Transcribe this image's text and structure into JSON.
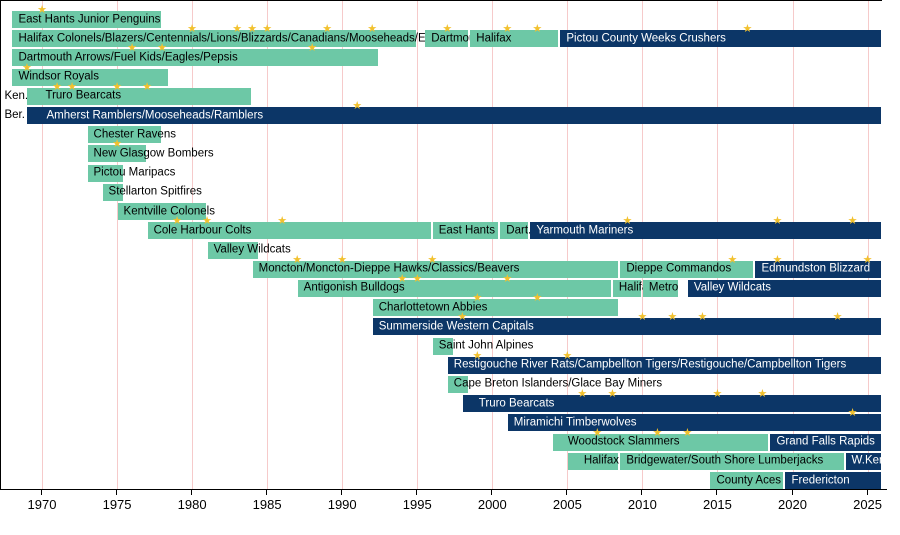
{
  "chart_data": {
    "type": "timeline",
    "title": "",
    "x_axis": {
      "unit": "year",
      "range": [
        1967.5,
        2026
      ],
      "ticks": [
        1970,
        1975,
        1980,
        1985,
        1990,
        1995,
        2000,
        2005,
        2010,
        2015,
        2020,
        2025
      ],
      "tick_labels": [
        "1970",
        "1975",
        "1980",
        "1985",
        "1990",
        "1995",
        "2000",
        "2005",
        "2010",
        "2015",
        "2020",
        "2025"
      ]
    },
    "colors": {
      "teal_bar": "#6dc8a6",
      "navy_bar": "#0c3667",
      "teal_text": "#000000",
      "navy_text": "#ffffff",
      "star": "#f2c12e",
      "gridline": "#f6caca",
      "axis": "#000000"
    },
    "star_icon": "★",
    "rows": [
      {
        "segments": [
          {
            "label": "East Hants Junior Penguins",
            "start": 1968,
            "end": 1978,
            "color": "teal",
            "stars": [
              1970
            ]
          }
        ]
      },
      {
        "segments": [
          {
            "label": "Halifax Colonels/Blazers/Centennials/Lions/Blizzards/Canadians/Mooseheads/Exports",
            "start": 1968,
            "end": 1995,
            "color": "teal",
            "stars": [
              1980,
              1983,
              1984,
              1985,
              1989,
              1992
            ]
          },
          {
            "label": "Dartmouth",
            "start": 1995.5,
            "end": 1998.5,
            "color": "teal",
            "stars": [
              1997
            ]
          },
          {
            "label": "Halifax",
            "start": 1998.5,
            "end": 2004.5,
            "color": "teal",
            "stars": [
              2001,
              2003
            ]
          },
          {
            "label": "Pictou County Weeks Crushers",
            "start": 2004.5,
            "end": 2026,
            "color": "navy",
            "stars": [
              2017
            ]
          }
        ]
      },
      {
        "segments": [
          {
            "label": "Dartmouth Arrows/Fuel Kids/Eagles/Pepsis",
            "start": 1968,
            "end": 1992.5,
            "color": "teal",
            "stars": [
              1976,
              1978,
              1988
            ]
          }
        ]
      },
      {
        "segments": [
          {
            "label": "Windsor Royals",
            "start": 1968,
            "end": 1978.5,
            "color": "teal",
            "stars": [
              1969
            ]
          }
        ]
      },
      {
        "segments": [
          {
            "label": "Ken.",
            "start": 1967.5,
            "end": 1969,
            "color": "none",
            "stars": []
          },
          {
            "label": "Truro Bearcats",
            "start": 1969,
            "end": 1984,
            "color": "teal",
            "stars": [
              1971,
              1972,
              1975,
              1977
            ],
            "label_indent": 12
          }
        ]
      },
      {
        "segments": [
          {
            "label": "Ber.",
            "start": 1967.5,
            "end": 1969,
            "color": "none",
            "stars": []
          },
          {
            "label": "Amherst Ramblers/Mooseheads/Ramblers",
            "start": 1969,
            "end": 2026,
            "color": "navy",
            "stars": [
              1991
            ],
            "label_indent": 13
          }
        ]
      },
      {
        "segments": [
          {
            "label": "Chester Ravens",
            "start": 1973,
            "end": 1978,
            "color": "teal",
            "stars": []
          }
        ]
      },
      {
        "segments": [
          {
            "label": "New Glasgow Bombers",
            "start": 1973,
            "end": 1977,
            "color": "teal",
            "stars": [
              1975
            ]
          }
        ]
      },
      {
        "segments": [
          {
            "label": "Pictou Maripacs",
            "start": 1973,
            "end": 1975.5,
            "color": "teal",
            "stars": []
          }
        ]
      },
      {
        "segments": [
          {
            "label": "Stellarton Spitfires",
            "start": 1974,
            "end": 1975.5,
            "color": "teal",
            "stars": []
          }
        ]
      },
      {
        "segments": [
          {
            "label": "Kentville Colonels",
            "start": 1975,
            "end": 1981,
            "color": "teal",
            "stars": []
          }
        ]
      },
      {
        "segments": [
          {
            "label": "Cole Harbour Colts",
            "start": 1977,
            "end": 1996,
            "color": "teal",
            "stars": [
              1979,
              1981,
              1986
            ]
          },
          {
            "label": "East Hants",
            "start": 1996,
            "end": 2000.5,
            "color": "teal",
            "stars": []
          },
          {
            "label": "Dart.",
            "start": 2000.5,
            "end": 2002.5,
            "color": "teal",
            "stars": []
          },
          {
            "label": "Yarmouth Mariners",
            "start": 2002.5,
            "end": 2026,
            "color": "navy",
            "stars": [
              2009,
              2019,
              2024
            ]
          }
        ]
      },
      {
        "segments": [
          {
            "label": "Valley Wildcats",
            "start": 1981,
            "end": 1984.5,
            "color": "teal",
            "stars": []
          }
        ]
      },
      {
        "segments": [
          {
            "label": "Moncton/Moncton-Dieppe Hawks/Classics/Beavers",
            "start": 1984,
            "end": 2008.5,
            "color": "teal",
            "stars": [
              1987,
              1990,
              1996
            ]
          },
          {
            "label": "Dieppe Commandos",
            "start": 2008.5,
            "end": 2017.5,
            "color": "teal",
            "stars": [
              2016
            ]
          },
          {
            "label": "Edmundston Blizzard",
            "start": 2017.5,
            "end": 2026,
            "color": "navy",
            "stars": [
              2019,
              2025
            ]
          }
        ]
      },
      {
        "segments": [
          {
            "label": "Antigonish Bulldogs",
            "start": 1987,
            "end": 2008,
            "color": "teal",
            "stars": [
              1994,
              1995,
              2001
            ]
          },
          {
            "label": "Halifax",
            "start": 2008,
            "end": 2010,
            "color": "teal",
            "stars": []
          },
          {
            "label": "Metro",
            "start": 2010,
            "end": 2012.5,
            "color": "teal",
            "stars": []
          },
          {
            "label": "Valley Wildcats",
            "start": 2013,
            "end": 2026,
            "color": "navy",
            "stars": []
          }
        ]
      },
      {
        "segments": [
          {
            "label": "Charlottetown Abbies",
            "start": 1992,
            "end": 2008.5,
            "color": "teal",
            "stars": [
              1999,
              2003
            ]
          }
        ]
      },
      {
        "segments": [
          {
            "label": "Summerside Western Capitals",
            "start": 1992,
            "end": 2026,
            "color": "navy",
            "stars": [
              1998,
              2010,
              2012,
              2014,
              2023
            ]
          }
        ]
      },
      {
        "segments": [
          {
            "label": "Saint John Alpines",
            "start": 1996,
            "end": 1997.5,
            "color": "teal",
            "stars": []
          }
        ]
      },
      {
        "segments": [
          {
            "label": "Restigouche River Rats/Campbellton Tigers/Restigouche/Campbellton Tigers",
            "start": 1997,
            "end": 2026,
            "color": "navy",
            "stars": [
              1999,
              2005
            ]
          }
        ]
      },
      {
        "segments": [
          {
            "label": "Cape Breton Islanders/Glace Bay Miners",
            "start": 1997,
            "end": 1998.5,
            "color": "teal",
            "stars": []
          }
        ]
      },
      {
        "segments": [
          {
            "label": "Truro Bearcats",
            "start": 1998,
            "end": 2026,
            "color": "navy",
            "stars": [
              2006,
              2008,
              2015,
              2018
            ],
            "label_indent": 10
          }
        ]
      },
      {
        "segments": [
          {
            "label": "Miramichi Timberwolves",
            "start": 2001,
            "end": 2026,
            "color": "navy",
            "stars": [
              2024
            ]
          }
        ]
      },
      {
        "segments": [
          {
            "label": "Woodstock Slammers",
            "start": 2004,
            "end": 2018.5,
            "color": "teal",
            "stars": [
              2007,
              2011,
              2013
            ],
            "label_indent": 9
          },
          {
            "label": "Grand Falls Rapids",
            "start": 2018.5,
            "end": 2026,
            "color": "navy",
            "stars": []
          }
        ]
      },
      {
        "segments": [
          {
            "label": "Halifax",
            "start": 2005,
            "end": 2008.5,
            "color": "teal",
            "stars": [],
            "label_indent": 10
          },
          {
            "label": "Bridgewater/South Shore Lumberjacks",
            "start": 2008.5,
            "end": 2023.5,
            "color": "teal",
            "stars": []
          },
          {
            "label": "W.Kent",
            "start": 2023.5,
            "end": 2026,
            "color": "navy",
            "stars": []
          }
        ]
      },
      {
        "segments": [
          {
            "label": "County Aces",
            "start": 2014.5,
            "end": 2019.5,
            "color": "teal",
            "stars": []
          },
          {
            "label": "Fredericton",
            "start": 2019.5,
            "end": 2026,
            "color": "navy",
            "stars": []
          }
        ]
      }
    ]
  }
}
